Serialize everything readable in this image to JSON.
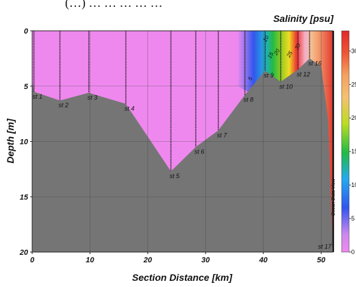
{
  "caption_fragment": "(…) … … … … …",
  "chart_data": {
    "type": "section",
    "title": "Salinity [psu]",
    "xlabel": "Section Distance [km]",
    "ylabel": "Depth [m]",
    "xlim": [
      0,
      52
    ],
    "ylim": [
      0,
      20
    ],
    "y_inverted": true,
    "xticks": [
      0,
      10,
      20,
      30,
      40,
      50
    ],
    "yticks": [
      0,
      5,
      10,
      15,
      20
    ],
    "grid": true,
    "watermark": "Ocean Data View",
    "colorbar": {
      "ticks": [
        0,
        5,
        10,
        15,
        20,
        25,
        30
      ],
      "visible_tick_labels": [
        "0",
        "5",
        "10",
        "15",
        "20",
        "25",
        "30"
      ],
      "range": [
        0,
        33
      ],
      "colors": [
        "#ee88ee",
        "#4444ee",
        "#22bb44",
        "#bbdd22",
        "#f5a060",
        "#ee3333"
      ]
    },
    "stations": [
      {
        "name": "st 1",
        "x": 0.3,
        "bottom_depth": 5.5
      },
      {
        "name": "st 2",
        "x": 4.8,
        "bottom_depth": 6.3
      },
      {
        "name": "st 3",
        "x": 9.8,
        "bottom_depth": 5.6
      },
      {
        "name": "st 4",
        "x": 16.2,
        "bottom_depth": 6.6
      },
      {
        "name": "st 5",
        "x": 24.0,
        "bottom_depth": 12.7
      },
      {
        "name": "st 6",
        "x": 28.3,
        "bottom_depth": 10.5
      },
      {
        "name": "st 7",
        "x": 32.2,
        "bottom_depth": 9.0
      },
      {
        "name": "st 8",
        "x": 36.8,
        "bottom_depth": 5.8
      },
      {
        "name": "st 9",
        "x": 40.3,
        "bottom_depth": 3.6
      },
      {
        "name": "st 10",
        "x": 43.0,
        "bottom_depth": 4.6
      },
      {
        "name": "st 12",
        "x": 46.0,
        "bottom_depth": 3.5
      },
      {
        "name": "st 16",
        "x": 48.0,
        "bottom_depth": 2.5
      },
      {
        "name": "st 17",
        "x": 52.0,
        "bottom_depth": 19.5
      }
    ],
    "isolines": [
      {
        "label": "5",
        "x": 38.0,
        "depth": 4.4
      },
      {
        "label": "10",
        "x": 40.7,
        "depth": 0.8
      },
      {
        "label": "15",
        "x": 41.5,
        "depth": 2.3
      },
      {
        "label": "20",
        "x": 42.6,
        "depth": 2.0
      },
      {
        "label": "25",
        "x": 44.8,
        "depth": 2.2
      },
      {
        "label": "30",
        "x": 46.2,
        "depth": 1.5
      }
    ],
    "bathymetry": [
      [
        0,
        4.5
      ],
      [
        0.3,
        5.5
      ],
      [
        4.8,
        6.3
      ],
      [
        9.8,
        5.6
      ],
      [
        16.2,
        6.6
      ],
      [
        24.0,
        12.7
      ],
      [
        28.3,
        10.5
      ],
      [
        32.2,
        9.0
      ],
      [
        36.8,
        5.8
      ],
      [
        40.3,
        3.6
      ],
      [
        43.0,
        4.6
      ],
      [
        46.0,
        3.5
      ],
      [
        48.0,
        2.5
      ],
      [
        50.0,
        3.2
      ],
      [
        51.2,
        8.0
      ],
      [
        51.7,
        15.0
      ],
      [
        52.0,
        19.5
      ]
    ]
  }
}
